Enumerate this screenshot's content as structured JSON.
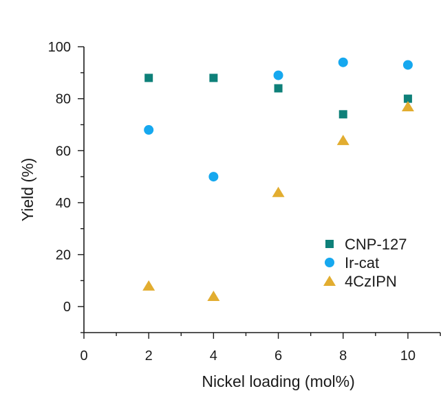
{
  "chart_data": {
    "type": "scatter",
    "xlabel": "Nickel loading (mol%)",
    "ylabel": "Yield (%)",
    "xlim": [
      0,
      11
    ],
    "ylim": [
      -10,
      100
    ],
    "xticks": [
      0,
      2,
      4,
      6,
      8,
      10
    ],
    "yticks": [
      0,
      20,
      40,
      60,
      80,
      100
    ],
    "x_minor_ticks": [
      1,
      3,
      5,
      7,
      9,
      11
    ],
    "y_minor_ticks": [
      -10,
      10,
      30,
      50,
      70,
      90
    ],
    "grid": false,
    "legend_position": "right",
    "series": [
      {
        "name": "CNP-127",
        "marker": "square",
        "color": "#0e8079",
        "points": [
          {
            "x": 2,
            "y": 88
          },
          {
            "x": 4,
            "y": 88
          },
          {
            "x": 6,
            "y": 84
          },
          {
            "x": 8,
            "y": 74
          },
          {
            "x": 10,
            "y": 80
          }
        ]
      },
      {
        "name": "Ir-cat",
        "marker": "circle",
        "color": "#16a8ef",
        "points": [
          {
            "x": 2,
            "y": 68
          },
          {
            "x": 4,
            "y": 50
          },
          {
            "x": 6,
            "y": 89
          },
          {
            "x": 8,
            "y": 94
          },
          {
            "x": 10,
            "y": 93
          }
        ]
      },
      {
        "name": "4CzIPN",
        "marker": "triangle",
        "color": "#e2ad30",
        "points": [
          {
            "x": 2,
            "y": 8
          },
          {
            "x": 4,
            "y": 4
          },
          {
            "x": 6,
            "y": 44
          },
          {
            "x": 8,
            "y": 64
          },
          {
            "x": 10,
            "y": 77
          }
        ]
      }
    ]
  }
}
